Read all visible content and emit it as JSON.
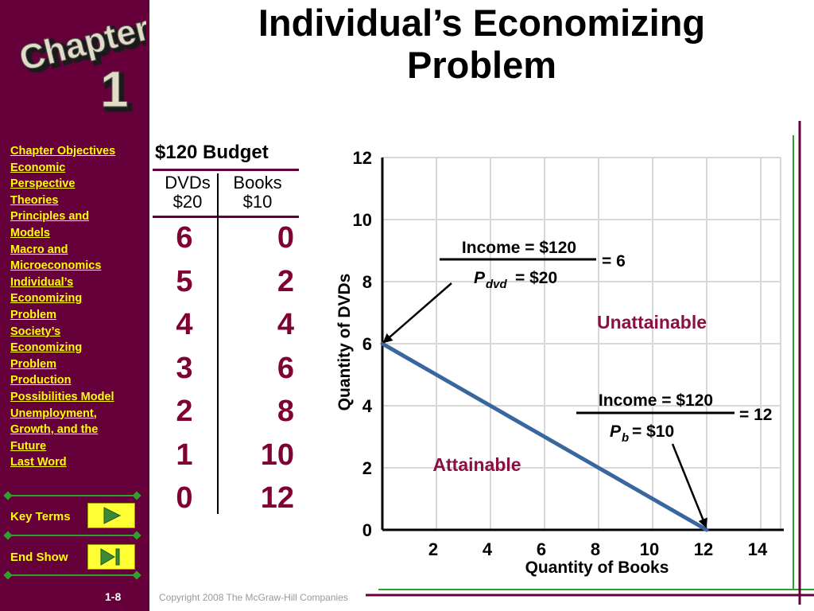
{
  "title_line1": "Individual’s Economizing",
  "title_line2": "Problem",
  "chapter_word": "Chapter",
  "chapter_number": "1",
  "toc": [
    "Chapter Objectives",
    "Economic",
    "Perspective",
    "Theories",
    "Principles and",
    "Models",
    "Macro and",
    "Microeconomics",
    "Individual’s",
    "Economizing",
    "Problem",
    "Society’s",
    "Economizing",
    "Problem",
    "Production",
    "Possibilities Model",
    "Unemployment,",
    "Growth, and the",
    "Future",
    "Last Word"
  ],
  "key_terms_label": "Key Terms",
  "end_show_label": "End Show",
  "page_number": "1-8",
  "copyright": "Copyright 2008 The McGraw-Hill Companies",
  "budget_table": {
    "title": "$120 Budget",
    "col1_header": "DVDs",
    "col1_price": "$20",
    "col2_header": "Books",
    "col2_price": "$10",
    "rows": [
      {
        "dvds": "6",
        "books": "0"
      },
      {
        "dvds": "5",
        "books": "2"
      },
      {
        "dvds": "4",
        "books": "4"
      },
      {
        "dvds": "3",
        "books": "6"
      },
      {
        "dvds": "2",
        "books": "8"
      },
      {
        "dvds": "1",
        "books": "10"
      },
      {
        "dvds": "0",
        "books": "12"
      }
    ]
  },
  "chart_data": {
    "type": "line",
    "xlabel": "Quantity of Books",
    "ylabel": "Quantity of DVDs",
    "xlim": [
      0,
      15
    ],
    "ylim": [
      0,
      12
    ],
    "x_ticks": [
      "2",
      "4",
      "6",
      "8",
      "10",
      "12",
      "14"
    ],
    "y_ticks": [
      "0",
      "2",
      "4",
      "6",
      "8",
      "10",
      "12"
    ],
    "grid": true,
    "series": [
      {
        "x": [
          0,
          2,
          4,
          6,
          8,
          10,
          12
        ],
        "y": [
          6,
          5,
          4,
          3,
          2,
          1,
          0
        ],
        "color": "#3a66a0"
      }
    ],
    "annotations": {
      "dvd_formula_numerator": "Income = $120",
      "dvd_formula_denominator_symbol": "P",
      "dvd_formula_denominator_sub": "dvd",
      "dvd_formula_denominator_value": "= $20",
      "dvd_formula_result": "= 6",
      "book_formula_numerator": "Income = $120",
      "book_formula_denominator_symbol": "P",
      "book_formula_denominator_sub": "b",
      "book_formula_denominator_value": "= $10",
      "book_formula_result": "= 12",
      "unattainable_label": "Unattainable",
      "attainable_label": "Attainable"
    }
  },
  "colors": {
    "sidebar": "#66003a",
    "toc_text": "#ffff00",
    "table_numbers": "#800033",
    "region_labels": "#8b1040",
    "budget_line": "#3a66a0",
    "accent_green": "#2ea02e"
  }
}
